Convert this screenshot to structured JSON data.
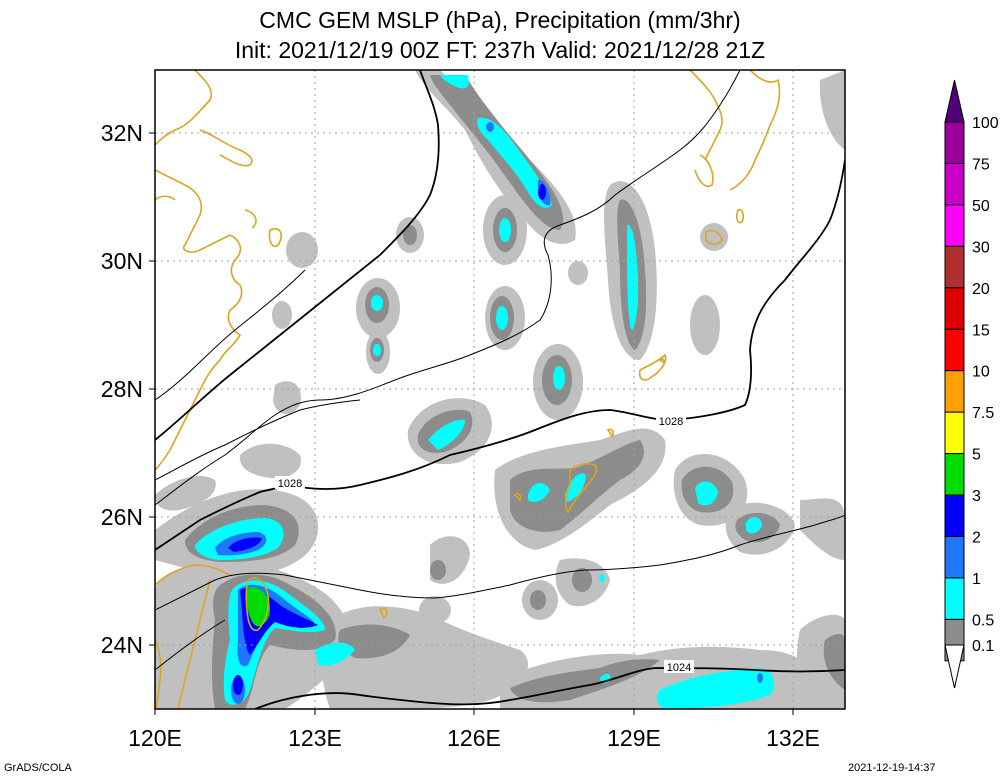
{
  "title": {
    "line1": "CMC GEM MSLP (hPa), Precipitation (mm/3hr)",
    "line2": "Init: 2021/12/19 00Z  FT: 237h  Valid: 2021/12/28 21Z"
  },
  "axes": {
    "lon_labels": [
      "120E",
      "123E",
      "126E",
      "129E",
      "132E"
    ],
    "lat_labels": [
      "32N",
      "30N",
      "28N",
      "26N",
      "24N"
    ]
  },
  "isobar_labels": [
    "1028",
    "1028",
    "1024"
  ],
  "colorbar": {
    "levels": [
      "100",
      "75",
      "50",
      "30",
      "20",
      "15",
      "10",
      "7.5",
      "5",
      "3",
      "2",
      "1",
      "0.5",
      "0.1"
    ],
    "colors": [
      "#9b009b",
      "#c800c8",
      "#ff00ff",
      "#b03030",
      "#dc0000",
      "#ff0000",
      "#ffa000",
      "#ffff00",
      "#00dc00",
      "#0000ff",
      "#1e78ff",
      "#00ffff",
      "#8c8c8c",
      "#c0c0c0"
    ],
    "top_color": "#500078"
  },
  "map_colors": {
    "coastline": "#daa520",
    "isobar": "#000000",
    "grid": "#a0a0a0"
  },
  "footer": {
    "left": "GrADS/COLA",
    "right": "2021-12-19-14:37"
  }
}
